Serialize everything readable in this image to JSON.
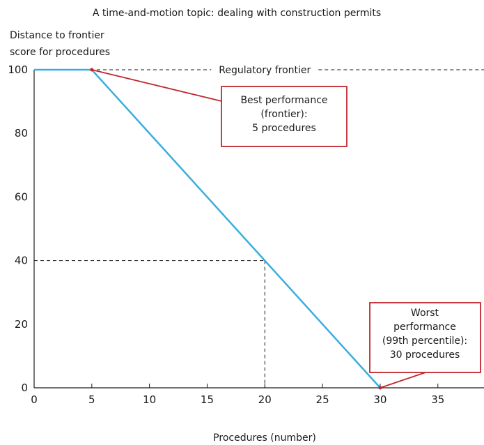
{
  "chart_data": {
    "type": "line",
    "title": "A time-and-motion topic: dealing with construction permits",
    "ylabel_lines": [
      "Distance to frontier",
      "score for procedures"
    ],
    "xlabel": "Procedures (number)",
    "xlim": [
      0,
      39
    ],
    "ylim": [
      0,
      100
    ],
    "x_ticks": [
      0,
      5,
      10,
      15,
      20,
      25,
      30,
      35
    ],
    "y_ticks": [
      0,
      20,
      40,
      60,
      80,
      100
    ],
    "grid": false,
    "series": [
      {
        "x": [
          0,
          5,
          20,
          30
        ],
        "y": [
          100,
          100,
          40,
          0
        ],
        "color": "#3aaede"
      }
    ],
    "reference_line": {
      "y": 100,
      "label": "Regulatory frontier"
    },
    "guide_point": {
      "x": 20,
      "y": 40
    },
    "annotations": [
      {
        "lines": [
          "Best performance",
          "(frontier):",
          "5 procedures"
        ],
        "point": {
          "x": 5,
          "y": 100
        }
      },
      {
        "lines": [
          "Worst",
          "performance",
          "(99th percentile):",
          "30 procedures"
        ],
        "point": {
          "x": 30,
          "y": 0
        }
      }
    ],
    "annotation_color": "#c1272d"
  }
}
